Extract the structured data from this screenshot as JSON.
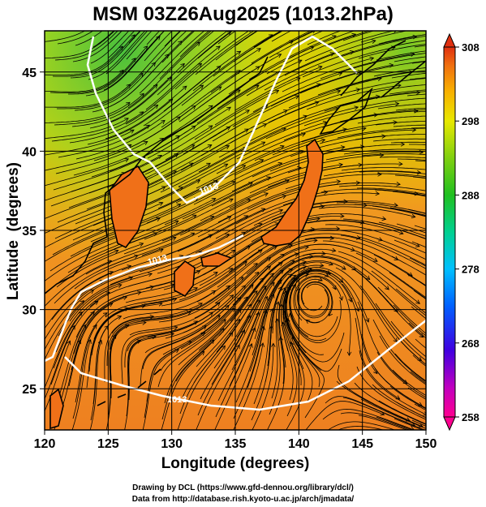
{
  "title": "MSM 03Z26Aug2025 (1013.2hPa)",
  "chart_data": {
    "type": "heatmap",
    "xlabel": "Longitude (degrees)",
    "ylabel": "Latitude  (degrees)",
    "xlim": [
      120,
      150
    ],
    "ylim": [
      22.4,
      47.6
    ],
    "xticks": [
      "120",
      "125",
      "130",
      "135",
      "140",
      "145",
      "150"
    ],
    "yticks": [
      "25",
      "30",
      "35",
      "40",
      "45"
    ],
    "colorbar": {
      "ticks": [
        "308",
        "298",
        "288",
        "278",
        "268",
        "258"
      ],
      "min": 258,
      "max": 308,
      "colors": [
        "#ff0090",
        "#c000c0",
        "#4000e0",
        "#0060ff",
        "#00c0ff",
        "#00d090",
        "#20c020",
        "#80d010",
        "#e8e800",
        "#f8b000",
        "#f07010",
        "#e03010"
      ]
    },
    "contour_labels": [
      "1013",
      "1013",
      "1013"
    ]
  },
  "footer": {
    "line1": "Drawing by DCL (https://www.gfd-dennou.org/library/dcl/)",
    "line2": "Data from http://database.rish.kyoto-u.ac.jp/arch/jmadata/"
  }
}
